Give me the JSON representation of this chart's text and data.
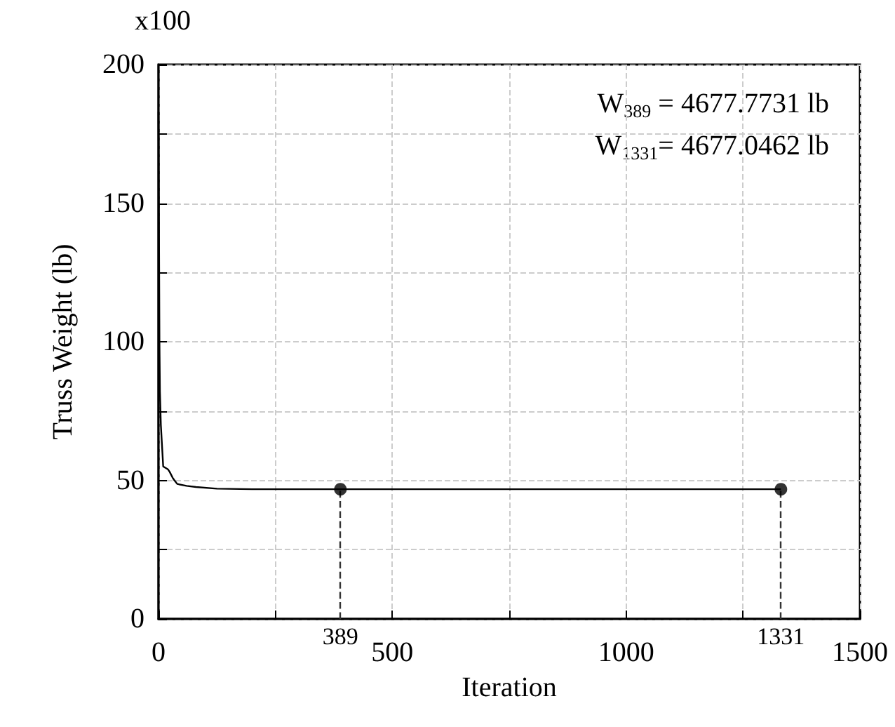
{
  "chart_data": {
    "type": "line",
    "xlabel": "Iteration",
    "ylabel": "Truss Weight (lb)",
    "annotations": [
      "x100",
      "W$_{389}$ = 4677.7731 lb",
      "W$_{1331}$= 4677.0462 lb"
    ],
    "series": [
      {
        "color": "#000000",
        "marker": "none",
        "x": [
          0,
          2,
          3,
          5,
          10,
          20,
          24,
          30,
          34,
          40,
          60,
          80,
          125,
          200,
          389,
          800,
          1331
        ],
        "values": [
          183,
          100,
          82,
          70,
          55,
          54,
          53,
          51,
          50,
          48.7,
          48,
          47.6,
          47,
          46.8,
          46.8,
          46.8,
          46.8
        ]
      },
      {
        "type": "scatter",
        "color": "#000000",
        "marker": "circle",
        "x": [
          389,
          1331
        ],
        "values": [
          46.8,
          46.8
        ]
      }
    ],
    "ref_lines": [
      {
        "axis": "x",
        "value": 389,
        "label": "389",
        "line_style": "dashed",
        "color": "#333333"
      },
      {
        "axis": "x",
        "value": 1331,
        "label": "1331",
        "line_style": "dashed",
        "color": "#333333"
      }
    ],
    "xlim": [
      0,
      1500
    ],
    "xticks": [
      0,
      {
        "value": 250,
        "label": null
      },
      500,
      {
        "value": 750,
        "label": null
      },
      1000,
      {
        "value": 1250,
        "label": null
      },
      1500
    ],
    "ylim": [
      0,
      200
    ],
    "yticks": [
      0,
      {
        "value": 25,
        "label": null
      },
      50,
      {
        "value": 75,
        "label": null
      },
      100,
      {
        "value": 125,
        "label": null
      },
      150,
      {
        "value": 175,
        "label": null
      },
      200
    ],
    "grid": true
  }
}
